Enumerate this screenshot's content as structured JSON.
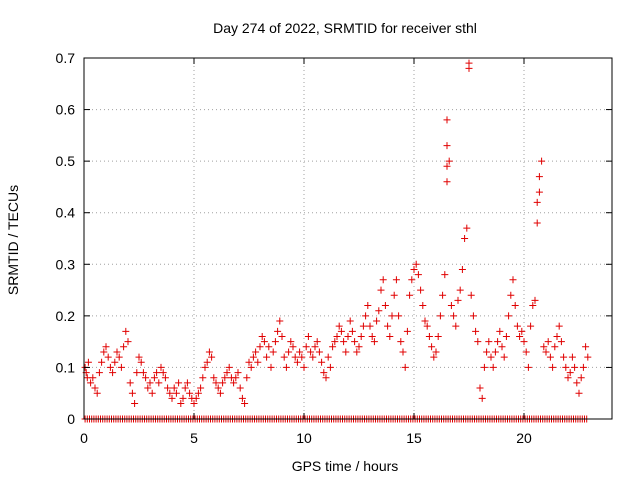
{
  "chart_data": {
    "type": "scatter",
    "title": "Day 274 of 2022, SRMTID for receiver sthl",
    "xlabel": "GPS time / hours",
    "ylabel": "SRMTID / TECUs",
    "xlim": [
      0,
      24
    ],
    "ylim": [
      0,
      0.7
    ],
    "xticks": [
      0,
      5,
      10,
      15,
      20
    ],
    "yticks": [
      0,
      0.1,
      0.2,
      0.3,
      0.4,
      0.5,
      0.6,
      0.7
    ],
    "grid": true,
    "marker": "+",
    "color": "#e00000",
    "series": [
      {
        "name": "SRMTID",
        "points": [
          [
            0.05,
            0.1
          ],
          [
            0.1,
            0.09
          ],
          [
            0.15,
            0.08
          ],
          [
            0.2,
            0.11
          ],
          [
            0.3,
            0.07
          ],
          [
            0.4,
            0.08
          ],
          [
            0.5,
            0.06
          ],
          [
            0.6,
            0.05
          ],
          [
            0.7,
            0.09
          ],
          [
            0.8,
            0.11
          ],
          [
            0.9,
            0.13
          ],
          [
            1.0,
            0.14
          ],
          [
            1.1,
            0.12
          ],
          [
            1.2,
            0.1
          ],
          [
            1.3,
            0.09
          ],
          [
            1.4,
            0.11
          ],
          [
            1.5,
            0.13
          ],
          [
            1.6,
            0.12
          ],
          [
            1.7,
            0.1
          ],
          [
            1.8,
            0.14
          ],
          [
            1.9,
            0.17
          ],
          [
            2.0,
            0.15
          ],
          [
            2.1,
            0.07
          ],
          [
            2.2,
            0.05
          ],
          [
            2.3,
            0.03
          ],
          [
            2.4,
            0.09
          ],
          [
            2.5,
            0.12
          ],
          [
            2.6,
            0.11
          ],
          [
            2.7,
            0.09
          ],
          [
            2.8,
            0.08
          ],
          [
            2.9,
            0.06
          ],
          [
            3.0,
            0.07
          ],
          [
            3.1,
            0.05
          ],
          [
            3.2,
            0.08
          ],
          [
            3.3,
            0.09
          ],
          [
            3.4,
            0.07
          ],
          [
            3.5,
            0.1
          ],
          [
            3.6,
            0.09
          ],
          [
            3.7,
            0.08
          ],
          [
            3.8,
            0.06
          ],
          [
            3.9,
            0.05
          ],
          [
            4.0,
            0.04
          ],
          [
            4.1,
            0.06
          ],
          [
            4.2,
            0.05
          ],
          [
            4.3,
            0.07
          ],
          [
            4.4,
            0.03
          ],
          [
            4.5,
            0.04
          ],
          [
            4.6,
            0.06
          ],
          [
            4.7,
            0.07
          ],
          [
            4.8,
            0.05
          ],
          [
            4.9,
            0.04
          ],
          [
            5.0,
            0.03
          ],
          [
            5.1,
            0.04
          ],
          [
            5.2,
            0.05
          ],
          [
            5.3,
            0.06
          ],
          [
            5.4,
            0.08
          ],
          [
            5.5,
            0.1
          ],
          [
            5.6,
            0.11
          ],
          [
            5.7,
            0.13
          ],
          [
            5.8,
            0.12
          ],
          [
            5.9,
            0.08
          ],
          [
            6.0,
            0.07
          ],
          [
            6.1,
            0.06
          ],
          [
            6.2,
            0.05
          ],
          [
            6.3,
            0.07
          ],
          [
            6.4,
            0.08
          ],
          [
            6.5,
            0.09
          ],
          [
            6.6,
            0.1
          ],
          [
            6.7,
            0.08
          ],
          [
            6.8,
            0.07
          ],
          [
            6.9,
            0.08
          ],
          [
            7.0,
            0.09
          ],
          [
            7.1,
            0.06
          ],
          [
            7.2,
            0.04
          ],
          [
            7.3,
            0.03
          ],
          [
            7.4,
            0.08
          ],
          [
            7.5,
            0.11
          ],
          [
            7.6,
            0.1
          ],
          [
            7.7,
            0.12
          ],
          [
            7.8,
            0.13
          ],
          [
            7.9,
            0.11
          ],
          [
            8.0,
            0.14
          ],
          [
            8.1,
            0.16
          ],
          [
            8.2,
            0.15
          ],
          [
            8.3,
            0.12
          ],
          [
            8.4,
            0.14
          ],
          [
            8.5,
            0.1
          ],
          [
            8.6,
            0.13
          ],
          [
            8.7,
            0.15
          ],
          [
            8.8,
            0.17
          ],
          [
            8.9,
            0.19
          ],
          [
            9.0,
            0.16
          ],
          [
            9.1,
            0.12
          ],
          [
            9.2,
            0.1
          ],
          [
            9.3,
            0.13
          ],
          [
            9.4,
            0.15
          ],
          [
            9.5,
            0.14
          ],
          [
            9.6,
            0.12
          ],
          [
            9.7,
            0.11
          ],
          [
            9.8,
            0.13
          ],
          [
            9.9,
            0.12
          ],
          [
            10.0,
            0.1
          ],
          [
            10.1,
            0.14
          ],
          [
            10.2,
            0.16
          ],
          [
            10.3,
            0.13
          ],
          [
            10.4,
            0.12
          ],
          [
            10.5,
            0.14
          ],
          [
            10.6,
            0.15
          ],
          [
            10.7,
            0.13
          ],
          [
            10.8,
            0.11
          ],
          [
            10.9,
            0.09
          ],
          [
            11.0,
            0.08
          ],
          [
            11.1,
            0.12
          ],
          [
            11.2,
            0.1
          ],
          [
            11.3,
            0.14
          ],
          [
            11.4,
            0.15
          ],
          [
            11.5,
            0.16
          ],
          [
            11.6,
            0.18
          ],
          [
            11.7,
            0.17
          ],
          [
            11.8,
            0.15
          ],
          [
            11.9,
            0.13
          ],
          [
            12.0,
            0.16
          ],
          [
            12.1,
            0.19
          ],
          [
            12.2,
            0.17
          ],
          [
            12.3,
            0.15
          ],
          [
            12.4,
            0.13
          ],
          [
            12.5,
            0.14
          ],
          [
            12.6,
            0.16
          ],
          [
            12.7,
            0.18
          ],
          [
            12.8,
            0.2
          ],
          [
            12.9,
            0.22
          ],
          [
            13.0,
            0.18
          ],
          [
            13.1,
            0.16
          ],
          [
            13.2,
            0.15
          ],
          [
            13.3,
            0.19
          ],
          [
            13.4,
            0.21
          ],
          [
            13.5,
            0.25
          ],
          [
            13.6,
            0.27
          ],
          [
            13.7,
            0.22
          ],
          [
            13.8,
            0.18
          ],
          [
            13.9,
            0.16
          ],
          [
            14.0,
            0.2
          ],
          [
            14.1,
            0.24
          ],
          [
            14.2,
            0.27
          ],
          [
            14.3,
            0.2
          ],
          [
            14.4,
            0.15
          ],
          [
            14.5,
            0.13
          ],
          [
            14.6,
            0.1
          ],
          [
            14.7,
            0.17
          ],
          [
            14.8,
            0.24
          ],
          [
            14.9,
            0.27
          ],
          [
            15.0,
            0.29
          ],
          [
            15.1,
            0.3
          ],
          [
            15.2,
            0.28
          ],
          [
            15.3,
            0.25
          ],
          [
            15.4,
            0.22
          ],
          [
            15.5,
            0.19
          ],
          [
            15.6,
            0.18
          ],
          [
            15.7,
            0.16
          ],
          [
            15.8,
            0.14
          ],
          [
            15.9,
            0.12
          ],
          [
            16.0,
            0.13
          ],
          [
            16.1,
            0.16
          ],
          [
            16.2,
            0.2
          ],
          [
            16.3,
            0.24
          ],
          [
            16.4,
            0.28
          ],
          [
            16.5,
            0.46
          ],
          [
            16.5,
            0.49
          ],
          [
            16.5,
            0.53
          ],
          [
            16.5,
            0.58
          ],
          [
            16.6,
            0.5
          ],
          [
            16.7,
            0.22
          ],
          [
            16.8,
            0.2
          ],
          [
            16.9,
            0.18
          ],
          [
            17.0,
            0.23
          ],
          [
            17.1,
            0.25
          ],
          [
            17.2,
            0.29
          ],
          [
            17.3,
            0.35
          ],
          [
            17.4,
            0.37
          ],
          [
            17.5,
            0.68
          ],
          [
            17.5,
            0.69
          ],
          [
            17.6,
            0.24
          ],
          [
            17.7,
            0.2
          ],
          [
            17.8,
            0.17
          ],
          [
            17.9,
            0.15
          ],
          [
            18.0,
            0.06
          ],
          [
            18.1,
            0.04
          ],
          [
            18.2,
            0.1
          ],
          [
            18.3,
            0.13
          ],
          [
            18.4,
            0.15
          ],
          [
            18.5,
            0.12
          ],
          [
            18.6,
            0.1
          ],
          [
            18.7,
            0.13
          ],
          [
            18.8,
            0.15
          ],
          [
            18.9,
            0.17
          ],
          [
            19.0,
            0.14
          ],
          [
            19.1,
            0.12
          ],
          [
            19.2,
            0.16
          ],
          [
            19.3,
            0.2
          ],
          [
            19.4,
            0.24
          ],
          [
            19.5,
            0.27
          ],
          [
            19.6,
            0.22
          ],
          [
            19.7,
            0.18
          ],
          [
            19.8,
            0.16
          ],
          [
            19.9,
            0.17
          ],
          [
            20.0,
            0.15
          ],
          [
            20.1,
            0.13
          ],
          [
            20.2,
            0.1
          ],
          [
            20.3,
            0.18
          ],
          [
            20.4,
            0.22
          ],
          [
            20.5,
            0.23
          ],
          [
            20.6,
            0.38
          ],
          [
            20.6,
            0.42
          ],
          [
            20.7,
            0.44
          ],
          [
            20.7,
            0.47
          ],
          [
            20.8,
            0.5
          ],
          [
            20.9,
            0.14
          ],
          [
            21.0,
            0.13
          ],
          [
            21.1,
            0.15
          ],
          [
            21.2,
            0.12
          ],
          [
            21.3,
            0.1
          ],
          [
            21.4,
            0.14
          ],
          [
            21.5,
            0.16
          ],
          [
            21.6,
            0.18
          ],
          [
            21.7,
            0.15
          ],
          [
            21.8,
            0.12
          ],
          [
            21.9,
            0.1
          ],
          [
            22.0,
            0.08
          ],
          [
            22.1,
            0.09
          ],
          [
            22.2,
            0.12
          ],
          [
            22.3,
            0.1
          ],
          [
            22.4,
            0.07
          ],
          [
            22.5,
            0.05
          ],
          [
            22.6,
            0.08
          ],
          [
            22.7,
            0.1
          ],
          [
            22.8,
            0.14
          ],
          [
            22.9,
            0.12
          ]
        ]
      }
    ],
    "zero_points": {
      "y": 0,
      "x_start": 0.05,
      "x_end": 22.9,
      "x_step": 0.1
    }
  }
}
